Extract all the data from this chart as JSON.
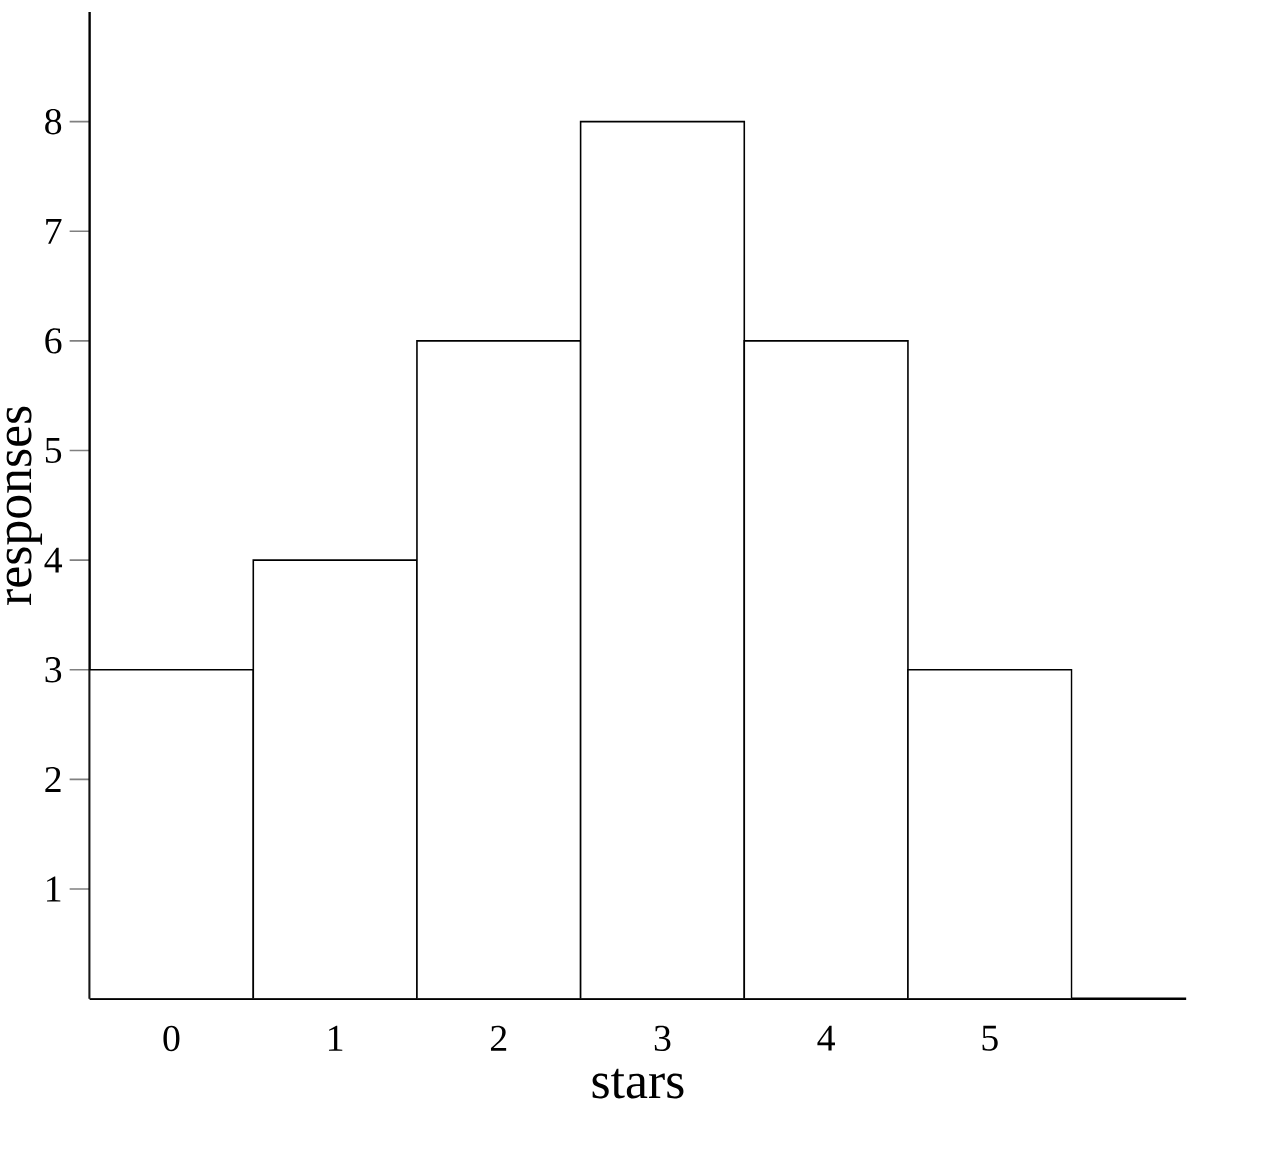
{
  "chart_data": {
    "type": "bar",
    "xlabel": "stars",
    "ylabel": "responses",
    "categories": [
      "0",
      "1",
      "2",
      "3",
      "4",
      "5"
    ],
    "values": [
      3,
      4,
      6,
      8,
      6,
      3
    ],
    "color": "#ffffff",
    "ylim": [
      0,
      9
    ],
    "yticks": [
      1,
      2,
      3,
      4,
      5,
      6,
      7,
      8
    ]
  }
}
